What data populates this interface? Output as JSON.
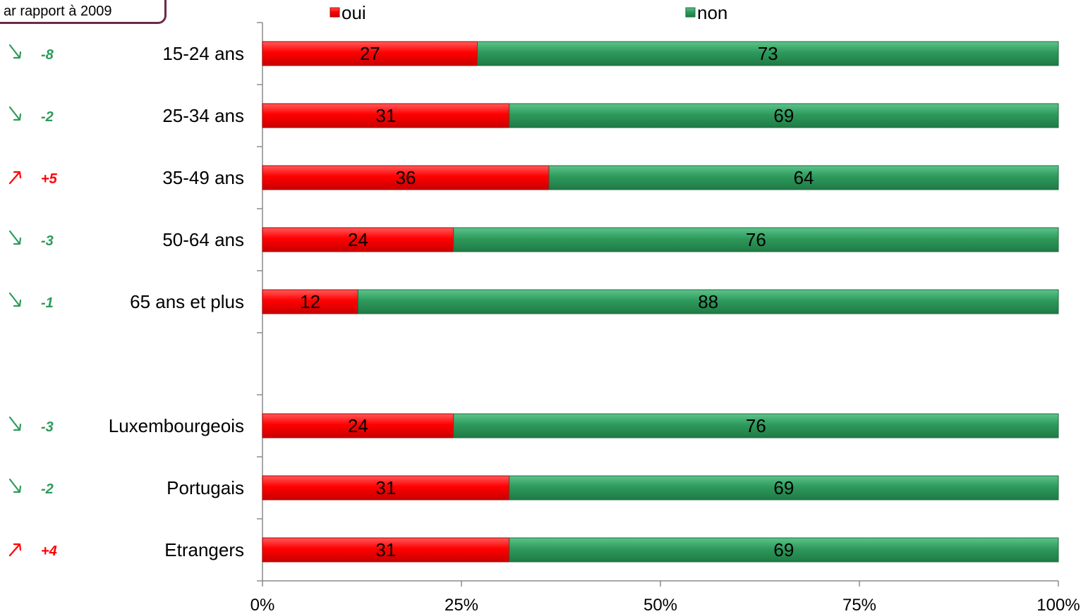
{
  "note": "ar rapport à 2009",
  "chart_data": {
    "type": "bar",
    "orientation": "horizontal",
    "stacked": "percent",
    "categories": [
      "15-24 ans",
      "25-34 ans",
      "35-49 ans",
      "50-64 ans",
      "65 ans et plus",
      "",
      "Luxembourgeois",
      "Portugais",
      "Etrangers"
    ],
    "series": [
      {
        "name": "oui",
        "color": "#ff0000",
        "values": [
          27,
          31,
          36,
          24,
          12,
          null,
          24,
          31,
          31
        ]
      },
      {
        "name": "non",
        "color": "#2e9a5c",
        "values": [
          73,
          69,
          64,
          76,
          88,
          null,
          76,
          69,
          69
        ]
      }
    ],
    "x_ticks": [
      "0%",
      "25%",
      "50%",
      "75%",
      "100%"
    ],
    "xlim": [
      0,
      100
    ],
    "legend_position": "top",
    "grid": false,
    "changes": [
      {
        "value": "-8",
        "direction": "down",
        "color": "#2e9a5c"
      },
      {
        "value": "-2",
        "direction": "down",
        "color": "#2e9a5c"
      },
      {
        "value": "+5",
        "direction": "up",
        "color": "#ff0000"
      },
      {
        "value": "-3",
        "direction": "down",
        "color": "#2e9a5c"
      },
      {
        "value": "-1",
        "direction": "down",
        "color": "#2e9a5c"
      },
      null,
      {
        "value": "-3",
        "direction": "down",
        "color": "#2e9a5c"
      },
      {
        "value": "-2",
        "direction": "down",
        "color": "#2e9a5c"
      },
      {
        "value": "+4",
        "direction": "up",
        "color": "#ff0000"
      }
    ]
  }
}
